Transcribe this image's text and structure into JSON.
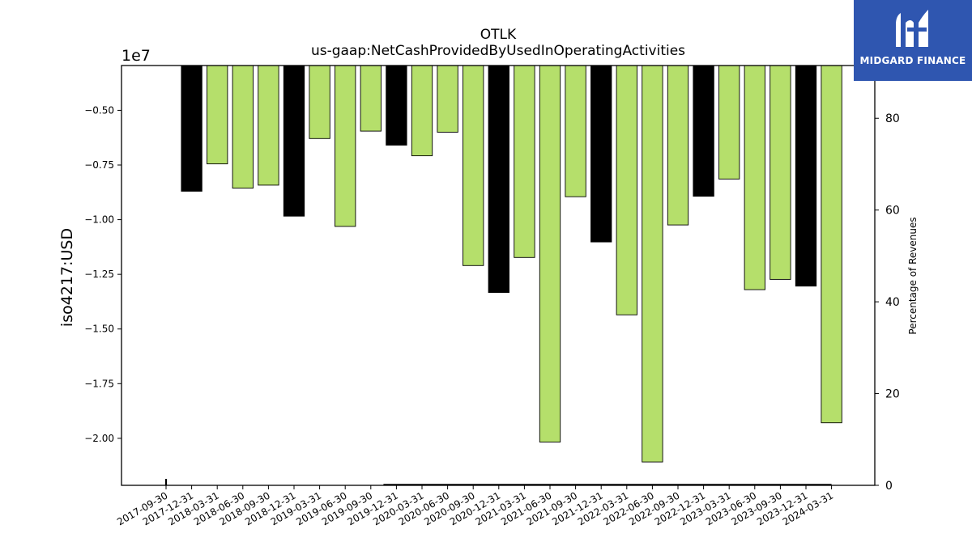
{
  "chart_data": {
    "type": "bar",
    "title": "OTLK",
    "subtitle": "us-gaap:NetCashProvidedByUsedInOperatingActivities",
    "ylabel": "iso4217:USD",
    "y_multiplier": "1e7",
    "y2label": "Percentage of Revenues",
    "categories": [
      "2017-09-30",
      "2017-12-31",
      "2018-03-31",
      "2018-06-30",
      "2018-09-30",
      "2018-12-31",
      "2019-03-31",
      "2019-06-30",
      "2019-09-30",
      "2019-12-31",
      "2020-03-31",
      "2020-06-30",
      "2020-09-30",
      "2020-12-31",
      "2021-03-31",
      "2021-06-30",
      "2021-09-30",
      "2021-12-31",
      "2022-03-31",
      "2022-06-30",
      "2022-09-30",
      "2022-12-31",
      "2023-03-31",
      "2023-06-30",
      "2023-09-30",
      "2023-12-31",
      "2024-03-31"
    ],
    "values": [
      null,
      -8700000,
      -7450000,
      -8560000,
      -8420000,
      -9840000,
      -6290000,
      -10310000,
      -5950000,
      -6590000,
      -7080000,
      -6000000,
      -12100000,
      -13330000,
      -11730000,
      -20170000,
      -8950000,
      -11020000,
      -14350000,
      -21080000,
      -10240000,
      -8930000,
      -8140000,
      -13200000,
      -12730000,
      -13040000,
      -19290000
    ],
    "bar_colors": [
      "#b5df6b",
      "#000000",
      "#b5df6b",
      "#b5df6b",
      "#b5df6b",
      "#000000",
      "#b5df6b",
      "#b5df6b",
      "#b5df6b",
      "#000000",
      "#b5df6b",
      "#b5df6b",
      "#b5df6b",
      "#000000",
      "#b5df6b",
      "#b5df6b",
      "#b5df6b",
      "#000000",
      "#b5df6b",
      "#b5df6b",
      "#b5df6b",
      "#000000",
      "#b5df6b",
      "#b5df6b",
      "#b5df6b",
      "#000000",
      "#b5df6b"
    ],
    "ylim": [
      -22150000,
      -2950000
    ],
    "yticks": [
      -20000000,
      -17500000,
      -15000000,
      -12500000,
      -10000000,
      -7500000,
      -5000000
    ],
    "ytick_labels": [
      "−2.00",
      "−1.75",
      "−1.50",
      "−1.25",
      "−1.00",
      "−0.75",
      "−0.50"
    ],
    "y2lim": [
      0,
      91.5
    ],
    "y2ticks": [
      0,
      20,
      40,
      60,
      80
    ],
    "y2tick_labels": [
      "0",
      "20",
      "40",
      "60",
      "80"
    ],
    "secondary_percent_series": [
      1.4,
      null,
      null,
      null,
      null,
      null,
      null,
      null,
      null,
      0,
      0,
      0,
      0,
      0,
      0,
      0,
      0,
      0,
      0,
      0,
      0,
      0,
      0,
      0,
      0,
      0,
      0
    ],
    "grid": false,
    "colors": {
      "positive_bar": "#b5df6b",
      "negative_bar": "#000000"
    }
  },
  "logo": {
    "text": "MIDGARD FINANCE",
    "background": "#2f56b0"
  }
}
